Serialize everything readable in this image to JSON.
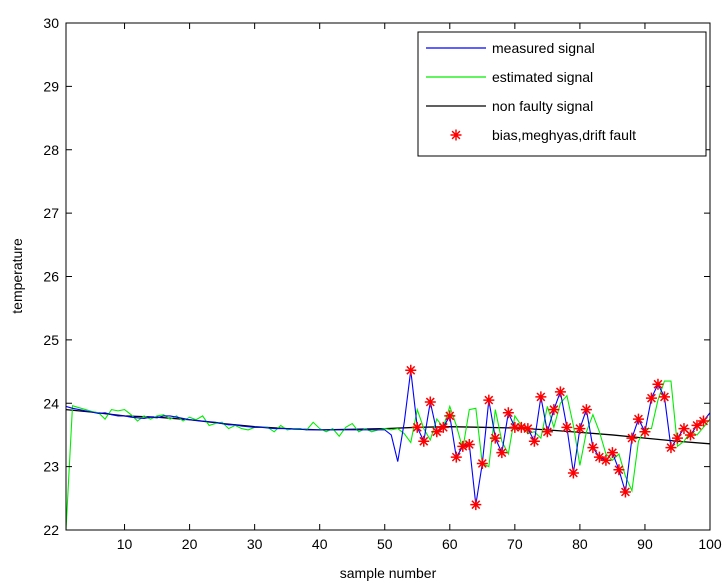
{
  "chart_data": {
    "type": "line",
    "title": "",
    "xlabel": "sample number",
    "ylabel": "temperature",
    "xlim": [
      1,
      100
    ],
    "ylim": [
      22,
      30
    ],
    "xticks": [
      10,
      20,
      30,
      40,
      50,
      60,
      70,
      80,
      90,
      100
    ],
    "yticks": [
      22,
      23,
      24,
      25,
      26,
      27,
      28,
      29,
      30
    ],
    "grid": false,
    "legend_position": "top-right",
    "series": [
      {
        "name": "measured signal",
        "color": "#0000ff",
        "style": "line",
        "x": [
          1,
          2,
          3,
          4,
          5,
          6,
          7,
          8,
          9,
          10,
          11,
          12,
          13,
          14,
          15,
          16,
          17,
          18,
          19,
          20,
          21,
          22,
          23,
          24,
          25,
          26,
          27,
          28,
          29,
          30,
          31,
          32,
          33,
          34,
          35,
          36,
          37,
          38,
          39,
          40,
          41,
          42,
          43,
          44,
          45,
          46,
          47,
          48,
          49,
          50,
          51,
          52,
          53,
          54,
          55,
          56,
          57,
          58,
          59,
          60,
          61,
          62,
          63,
          64,
          65,
          66,
          67,
          68,
          69,
          70,
          71,
          72,
          73,
          74,
          75,
          76,
          77,
          78,
          79,
          80,
          81,
          82,
          83,
          84,
          85,
          86,
          87,
          88,
          89,
          90,
          91,
          92,
          93,
          94,
          95,
          96,
          97,
          98,
          99,
          100
        ],
        "y": [
          23.95,
          23.92,
          23.9,
          23.88,
          23.86,
          23.84,
          23.85,
          23.82,
          23.8,
          23.8,
          23.78,
          23.77,
          23.76,
          23.78,
          23.77,
          23.8,
          23.8,
          23.78,
          23.76,
          23.74,
          23.73,
          23.72,
          23.71,
          23.7,
          23.68,
          23.66,
          23.66,
          23.64,
          23.63,
          23.62,
          23.62,
          23.61,
          23.6,
          23.6,
          23.6,
          23.59,
          23.59,
          23.58,
          23.58,
          23.58,
          23.58,
          23.58,
          23.58,
          23.58,
          23.58,
          23.58,
          23.58,
          23.58,
          23.58,
          23.58,
          23.5,
          23.08,
          23.7,
          24.52,
          23.62,
          23.4,
          24.02,
          23.55,
          23.62,
          23.8,
          23.15,
          23.32,
          23.35,
          22.4,
          23.05,
          24.05,
          23.45,
          23.22,
          23.85,
          23.62,
          23.62,
          23.6,
          23.4,
          24.1,
          23.55,
          23.9,
          24.18,
          23.62,
          22.9,
          23.6,
          23.9,
          23.3,
          23.15,
          23.1,
          23.22,
          22.95,
          22.6,
          23.45,
          23.75,
          23.55,
          24.08,
          24.3,
          24.1,
          23.3,
          23.45,
          23.6,
          23.5,
          23.65,
          23.72,
          23.85
        ]
      },
      {
        "name": "estimated signal",
        "color": "#00ee00",
        "style": "line",
        "x": [
          1,
          2,
          3,
          4,
          5,
          6,
          7,
          8,
          9,
          10,
          11,
          12,
          13,
          14,
          15,
          16,
          17,
          18,
          19,
          20,
          21,
          22,
          23,
          24,
          25,
          26,
          27,
          28,
          29,
          30,
          31,
          32,
          33,
          34,
          35,
          36,
          37,
          38,
          39,
          40,
          41,
          42,
          43,
          44,
          45,
          46,
          47,
          48,
          49,
          50,
          51,
          52,
          53,
          54,
          55,
          56,
          57,
          58,
          59,
          60,
          61,
          62,
          63,
          64,
          65,
          66,
          67,
          68,
          69,
          70,
          71,
          72,
          73,
          74,
          75,
          76,
          77,
          78,
          79,
          80,
          81,
          82,
          83,
          84,
          85,
          86,
          87,
          88,
          89,
          90,
          91,
          92,
          93,
          94,
          95,
          96,
          97,
          98,
          99,
          100
        ],
        "y": [
          22,
          23.96,
          23.93,
          23.9,
          23.87,
          23.85,
          23.75,
          23.9,
          23.88,
          23.9,
          23.82,
          23.72,
          23.8,
          23.75,
          23.8,
          23.82,
          23.75,
          23.8,
          23.72,
          23.78,
          23.74,
          23.8,
          23.65,
          23.68,
          23.7,
          23.6,
          23.65,
          23.6,
          23.58,
          23.62,
          23.62,
          23.62,
          23.55,
          23.65,
          23.58,
          23.6,
          23.6,
          23.58,
          23.7,
          23.6,
          23.55,
          23.6,
          23.48,
          23.62,
          23.68,
          23.55,
          23.6,
          23.55,
          23.58,
          23.6,
          23.58,
          23.6,
          23.52,
          23.38,
          23.9,
          23.6,
          23.42,
          23.75,
          23.62,
          23.95,
          23.65,
          23.28,
          23.9,
          23.92,
          23.05,
          23,
          23.9,
          23.4,
          23.2,
          23.8,
          23.65,
          23.52,
          23.55,
          23.45,
          23.95,
          23.62,
          24,
          24.12,
          23.65,
          23.02,
          23.55,
          23.82,
          23.55,
          23.2,
          23.1,
          23.2,
          22.85,
          22.62,
          23.4,
          23.6,
          23.6,
          24.05,
          24.35,
          24.35,
          23.32,
          23.4,
          23.55,
          23.5,
          23.62,
          23.75
        ]
      },
      {
        "name": "non faulty signal",
        "color": "#000000",
        "style": "line",
        "x": [
          1,
          5,
          10,
          15,
          20,
          25,
          30,
          35,
          40,
          45,
          50,
          55,
          60,
          65,
          70,
          75,
          80,
          85,
          90,
          95,
          100
        ],
        "y": [
          23.9,
          23.86,
          23.8,
          23.78,
          23.74,
          23.68,
          23.63,
          23.6,
          23.58,
          23.59,
          23.6,
          23.62,
          23.63,
          23.62,
          23.61,
          23.58,
          23.54,
          23.5,
          23.45,
          23.4,
          23.36
        ]
      },
      {
        "name": "bias,meghyas,drift fault",
        "color": "#ff0000",
        "style": "markers",
        "x": [
          54,
          55,
          56,
          57,
          58,
          59,
          60,
          61,
          62,
          63,
          64,
          65,
          66,
          67,
          68,
          69,
          70,
          71,
          72,
          73,
          74,
          75,
          76,
          77,
          78,
          79,
          80,
          81,
          82,
          83,
          84,
          85,
          86,
          87,
          88,
          89,
          90,
          91,
          92,
          93,
          94,
          95,
          96,
          97,
          98,
          99
        ],
        "y": [
          24.52,
          23.62,
          23.4,
          24.02,
          23.55,
          23.62,
          23.8,
          23.15,
          23.32,
          23.35,
          22.4,
          23.05,
          24.05,
          23.45,
          23.22,
          23.85,
          23.62,
          23.62,
          23.6,
          23.4,
          24.1,
          23.55,
          23.9,
          24.18,
          23.62,
          22.9,
          23.6,
          23.9,
          23.3,
          23.15,
          23.1,
          23.22,
          22.95,
          22.6,
          23.45,
          23.75,
          23.55,
          24.08,
          24.3,
          24.1,
          23.3,
          23.45,
          23.6,
          23.5,
          23.65,
          23.72
        ]
      }
    ]
  }
}
